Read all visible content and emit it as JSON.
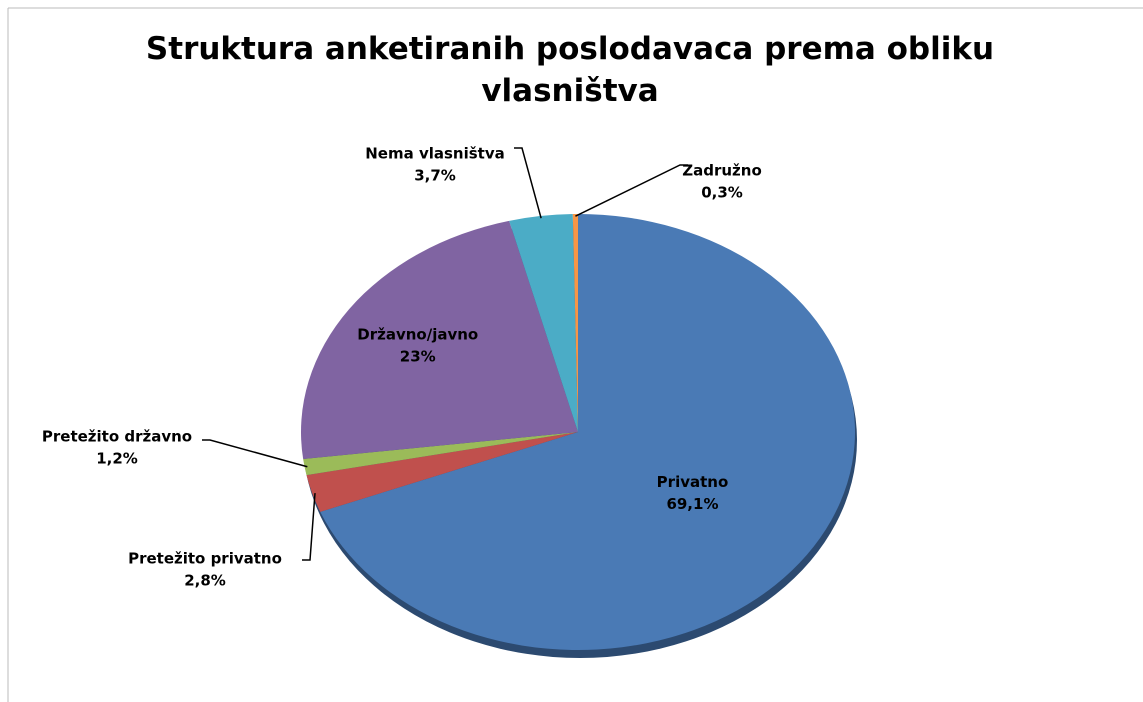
{
  "chart_data": {
    "type": "pie",
    "title": "Struktura anketiranih poslodavaca prema obliku vlasništva",
    "categories": [
      "Privatno",
      "Pretežito privatno",
      "Pretežito državno",
      "Državno/javno",
      "Nema vlasništva",
      "Zadružno"
    ],
    "values": [
      69.1,
      2.8,
      1.2,
      23,
      3.7,
      0.3
    ],
    "value_labels": [
      "69,1%",
      "2,8%",
      "1,2%",
      "23%",
      "3,7%",
      "0,3%"
    ],
    "colors": [
      "#4a7ab5",
      "#c0504d",
      "#9bbb59",
      "#8064a2",
      "#4bacc6",
      "#f79646"
    ]
  }
}
